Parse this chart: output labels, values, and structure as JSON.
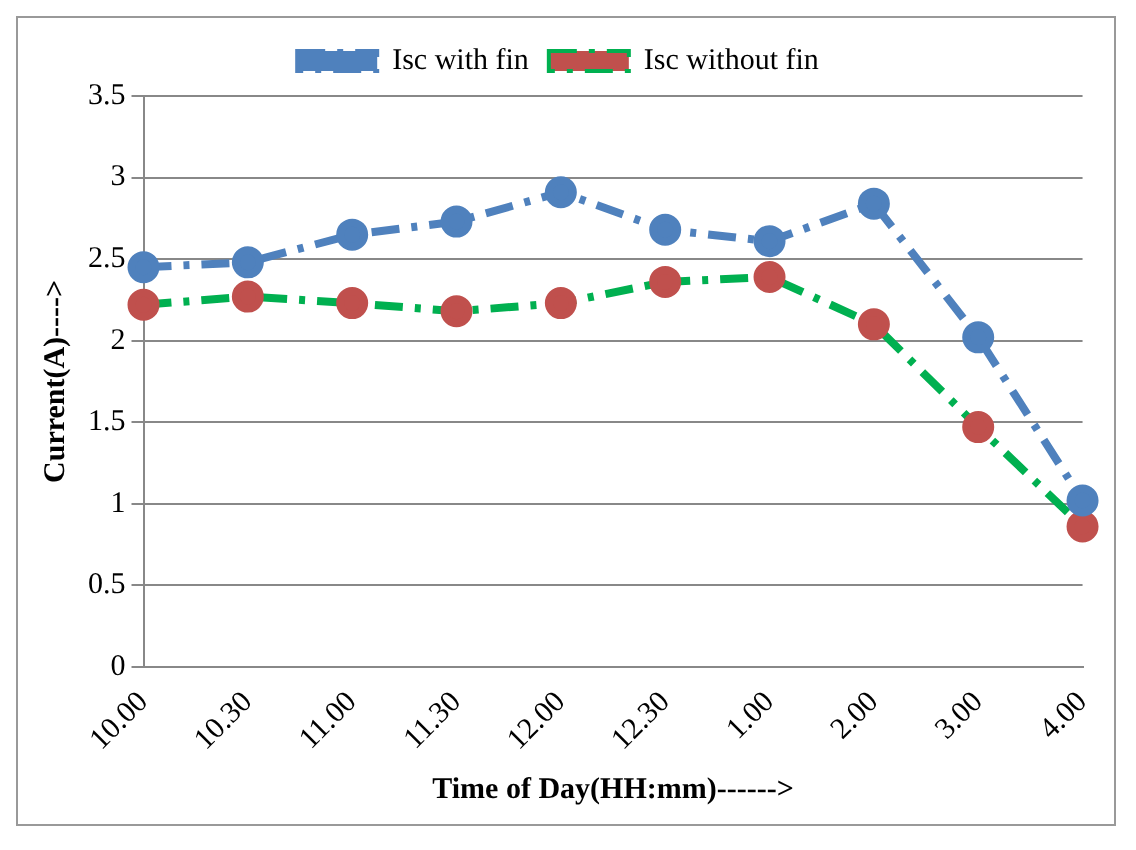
{
  "chart_data": {
    "type": "line",
    "xlabel": "Time of Day(HH:mm)------>",
    "ylabel": "Current(A)---->",
    "categories": [
      "10.00",
      "10.30",
      "11.00",
      "11.30",
      "12.00",
      "12.30",
      "1.00",
      "2.00",
      "3.00",
      "4.00"
    ],
    "series": [
      {
        "name": "Isc with fin",
        "color": "#4f81bd",
        "values": [
          2.45,
          2.48,
          2.65,
          2.73,
          2.91,
          2.68,
          2.61,
          2.84,
          2.02,
          1.02
        ]
      },
      {
        "name": "Isc without fin",
        "color": "#00b050",
        "colors": [
          "#c0504d",
          "#c0504d",
          "#c0504d",
          "#c0504d",
          "#c0504d",
          "#c0504d",
          "#c0504d",
          "#c0504d",
          "#c0504d",
          "#c0504d"
        ],
        "values": [
          2.22,
          2.27,
          2.23,
          2.18,
          2.23,
          2.36,
          2.39,
          2.1,
          1.47,
          0.86
        ]
      }
    ],
    "ylim": [
      0,
      3.5
    ],
    "yticks": [
      0,
      0.5,
      1,
      1.5,
      2,
      2.5,
      3,
      3.5
    ],
    "grid": "y",
    "legend": "top",
    "marker": "circle",
    "line_style": "dashed"
  }
}
